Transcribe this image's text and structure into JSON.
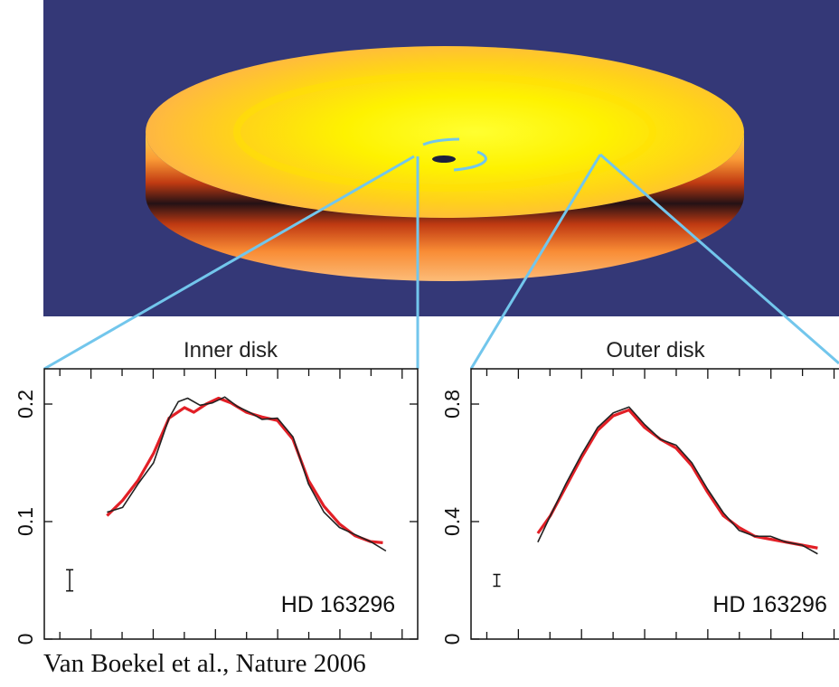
{
  "colors": {
    "background": "#343877",
    "connector": "#72c6ec",
    "model_line": "#e21f26",
    "data_line": "#222222"
  },
  "credit": "Van Boekel et al., Nature 2006",
  "chart_data": [
    {
      "type": "line",
      "title": "Inner disk",
      "xlabel": "",
      "ylabel": "",
      "ylim": [
        0,
        0.23
      ],
      "xlim": [
        0,
        1
      ],
      "yticks": [
        0,
        0.1,
        0.2
      ],
      "ytick_labels": [
        "0",
        "0.1",
        "0.2"
      ],
      "annotation": "HD 163296",
      "errorbar": {
        "x": 0.08,
        "y": 0.05,
        "half_height": 0.009
      },
      "series": [
        {
          "role": "model",
          "color": "#e21f26",
          "x": [
            0.1,
            0.15,
            0.2,
            0.25,
            0.3,
            0.35,
            0.38,
            0.42,
            0.46,
            0.5,
            0.55,
            0.6,
            0.65,
            0.7,
            0.75,
            0.8,
            0.85,
            0.9,
            0.95,
            0.99
          ],
          "y": [
            0.105,
            0.118,
            0.135,
            0.158,
            0.188,
            0.197,
            0.193,
            0.2,
            0.205,
            0.201,
            0.193,
            0.189,
            0.186,
            0.17,
            0.135,
            0.113,
            0.098,
            0.088,
            0.083,
            0.082
          ]
        },
        {
          "role": "observed",
          "color": "#222222",
          "x": [
            0.1,
            0.15,
            0.2,
            0.25,
            0.3,
            0.33,
            0.36,
            0.4,
            0.44,
            0.48,
            0.52,
            0.56,
            0.6,
            0.65,
            0.7,
            0.75,
            0.8,
            0.85,
            0.9,
            0.95,
            1.0
          ],
          "y": [
            0.108,
            0.112,
            0.132,
            0.15,
            0.188,
            0.202,
            0.205,
            0.199,
            0.201,
            0.206,
            0.198,
            0.193,
            0.187,
            0.188,
            0.172,
            0.132,
            0.108,
            0.095,
            0.089,
            0.083,
            0.075
          ]
        }
      ]
    },
    {
      "type": "line",
      "title": "Outer disk",
      "xlabel": "",
      "ylabel": "",
      "ylim": [
        0,
        0.92
      ],
      "xlim": [
        0,
        1
      ],
      "yticks": [
        0,
        0.4,
        0.8
      ],
      "ytick_labels": [
        "0",
        "0.4",
        "0.8"
      ],
      "annotation": "HD 163296",
      "errorbar": {
        "x": 0.08,
        "y": 0.2,
        "half_height": 0.02
      },
      "series": [
        {
          "role": "model",
          "color": "#e21f26",
          "x": [
            0.11,
            0.15,
            0.2,
            0.25,
            0.3,
            0.35,
            0.4,
            0.45,
            0.5,
            0.55,
            0.6,
            0.65,
            0.7,
            0.75,
            0.8,
            0.85,
            0.9,
            0.95,
            1.0
          ],
          "y": [
            0.36,
            0.42,
            0.52,
            0.62,
            0.71,
            0.76,
            0.78,
            0.72,
            0.68,
            0.65,
            0.59,
            0.5,
            0.42,
            0.38,
            0.35,
            0.34,
            0.33,
            0.32,
            0.31
          ]
        },
        {
          "role": "observed",
          "color": "#222222",
          "x": [
            0.11,
            0.15,
            0.2,
            0.25,
            0.3,
            0.35,
            0.4,
            0.45,
            0.5,
            0.55,
            0.6,
            0.65,
            0.7,
            0.75,
            0.8,
            0.85,
            0.9,
            0.95,
            1.0
          ],
          "y": [
            0.33,
            0.42,
            0.53,
            0.63,
            0.72,
            0.77,
            0.79,
            0.73,
            0.68,
            0.66,
            0.6,
            0.51,
            0.43,
            0.37,
            0.35,
            0.35,
            0.33,
            0.32,
            0.29
          ]
        }
      ]
    }
  ]
}
